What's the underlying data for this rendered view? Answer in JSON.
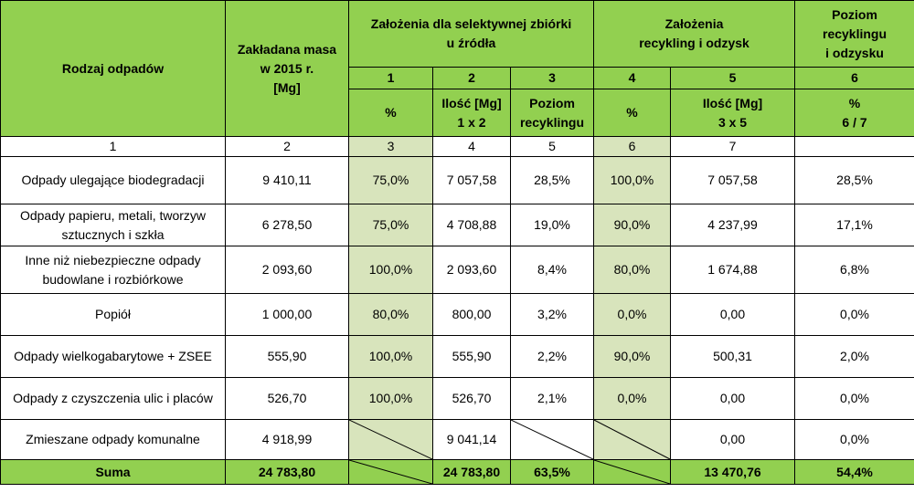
{
  "header": {
    "rodzaj": "Rodzaj odpadów",
    "masa": [
      "Zakładana masa",
      "w 2015 r.",
      "[Mg]"
    ],
    "zalozenia_zbiorki": [
      "Założenia dla selektywnej zbiórki",
      "u źródła"
    ],
    "zalozenia_recykling": [
      "Założenia",
      "recykling i odzysk"
    ],
    "poziom": [
      "Poziom",
      "recyklingu",
      "i odzysku"
    ],
    "col_numbers": [
      "1",
      "2",
      "3",
      "4",
      "5",
      "6"
    ],
    "units": [
      [
        "%"
      ],
      [
        "Ilość [Mg]",
        "1 x 2"
      ],
      [
        "Poziom",
        "recyklingu"
      ],
      [
        "%"
      ],
      [
        "Ilość [Mg]",
        "3 x 5"
      ],
      [
        "%",
        "6 / 7"
      ]
    ],
    "index_row": [
      "1",
      "2",
      "3",
      "4",
      "5",
      "6",
      "7"
    ]
  },
  "rows": [
    {
      "name": [
        "Odpady ulegające biodegradacji"
      ],
      "masa": "9 410,11",
      "c1": "75,0%",
      "c2": "7 057,58",
      "c3": "28,5%",
      "c4": "100,0%",
      "c5": "7 057,58",
      "c6": "28,5%"
    },
    {
      "name": [
        "Odpady papieru, metali, tworzyw",
        "sztucznych i szkła"
      ],
      "masa": "6 278,50",
      "c1": "75,0%",
      "c2": "4 708,88",
      "c3": "19,0%",
      "c4": "90,0%",
      "c5": "4 237,99",
      "c6": "17,1%"
    },
    {
      "name": [
        "Inne niż niebezpieczne odpady",
        "budowlane i rozbiórkowe"
      ],
      "masa": "2 093,60",
      "c1": "100,0%",
      "c2": "2 093,60",
      "c3": "8,4%",
      "c4": "80,0%",
      "c5": "1 674,88",
      "c6": "6,8%"
    },
    {
      "name": [
        "Popiół"
      ],
      "masa": "1 000,00",
      "c1": "80,0%",
      "c2": "800,00",
      "c3": "3,2%",
      "c4": "0,0%",
      "c5": "0,00",
      "c6": "0,0%"
    },
    {
      "name": [
        "Odpady wielkogabarytowe + ZSEE"
      ],
      "masa": "555,90",
      "c1": "100,0%",
      "c2": "555,90",
      "c3": "2,2%",
      "c4": "90,0%",
      "c5": "500,31",
      "c6": "2,0%"
    },
    {
      "name": [
        "Odpady z czyszczenia ulic i placów"
      ],
      "masa": "526,70",
      "c1": "100,0%",
      "c2": "526,70",
      "c3": "2,1%",
      "c4": "0,0%",
      "c5": "0,00",
      "c6": "0,0%"
    },
    {
      "name": [
        "Zmieszane odpady komunalne"
      ],
      "masa": "4 918,99",
      "c1": "",
      "c2": "9 041,14",
      "c3": "",
      "c4": "",
      "c5": "0,00",
      "c6": "0,0%"
    }
  ],
  "footer": {
    "label": "Suma",
    "masa": "24 783,80",
    "c2": "24 783,80",
    "c3": "63,5%",
    "c5": "13 470,76",
    "c6": "54,4%"
  },
  "colors": {
    "header_green": "#92d050",
    "light_green": "#d8e4bc"
  }
}
